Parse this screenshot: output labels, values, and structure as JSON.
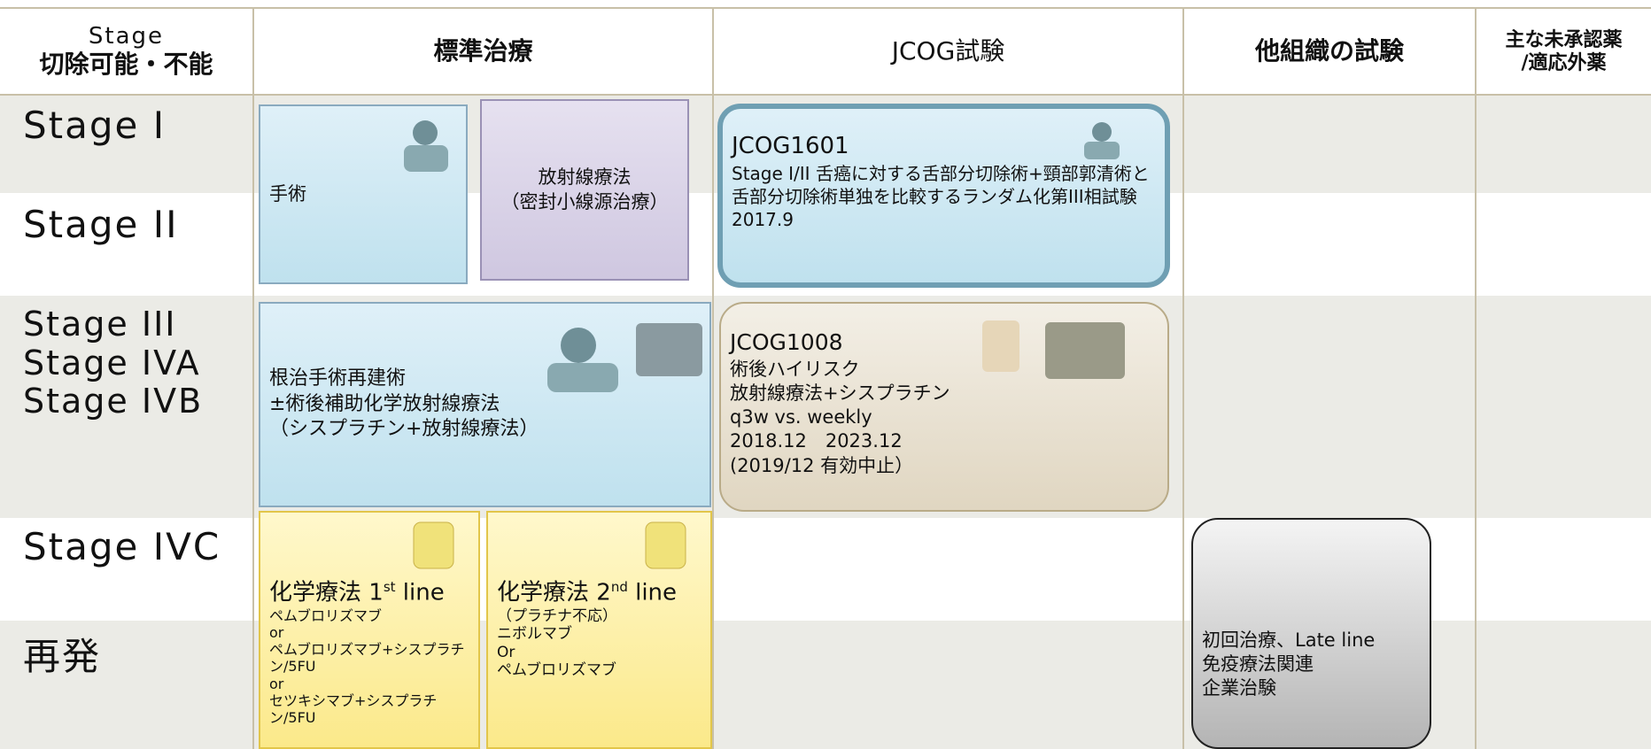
{
  "header": {
    "stage_col": {
      "line1": "Stage",
      "line2": "切除可能・不能"
    },
    "columns": [
      {
        "lines": [
          "標準治療"
        ]
      },
      {
        "lines": [
          "JCOG試験"
        ]
      },
      {
        "lines": [
          "他組織の試験"
        ]
      },
      {
        "lines": [
          "主な未承認薬",
          "/適応外薬"
        ]
      }
    ]
  },
  "stages": {
    "stage_1": "Stage I",
    "stage_2": "Stage II",
    "stage_3_4ab": [
      "Stage III",
      "Stage IVA",
      "Stage IVB"
    ],
    "stage_4c": "Stage IVC",
    "recurrence": "再発"
  },
  "standard": {
    "surgery": {
      "lines": [
        "手術"
      ]
    },
    "radiation": {
      "lines": [
        "放射線療法",
        "（密封小線源治療）"
      ]
    },
    "curative": {
      "lines": [
        "根治手術再建術",
        "±術後補助化学放射線療法",
        "（シスプラチン+放射線療法）"
      ]
    },
    "chemo_1": {
      "title_parts": [
        "化学療法 1",
        "st",
        " line"
      ],
      "lines": [
        "ペムブロリズマブ",
        "or",
        "ペムブロリズマブ+シスプラチン/5FU",
        "or",
        "セツキシマブ+シスプラチン/5FU"
      ]
    },
    "chemo_2": {
      "title_parts": [
        "化学療法 2",
        "nd",
        " line"
      ],
      "lines": [
        "（プラチナ不応）",
        "ニボルマブ",
        "Or",
        "ペムブロリズマブ"
      ]
    }
  },
  "jcog": [
    {
      "id": "JCOG1601",
      "lines": [
        "Stage I/II 舌癌に対する舌部分切除術+頸部郭清術と舌部分切除術単独を比較するランダム化第III相試験",
        "2017.9"
      ]
    },
    {
      "id": "JCOG1008",
      "lines": [
        "術後ハイリスク",
        "放射線療法+シスプラチン",
        "q3w vs. weekly",
        "2018.12　2023.12",
        "(2019/12 有効中止）"
      ]
    }
  ],
  "other": {
    "lines": [
      "初回治療、Late line",
      "免疫療法関連",
      "企業治験"
    ]
  }
}
